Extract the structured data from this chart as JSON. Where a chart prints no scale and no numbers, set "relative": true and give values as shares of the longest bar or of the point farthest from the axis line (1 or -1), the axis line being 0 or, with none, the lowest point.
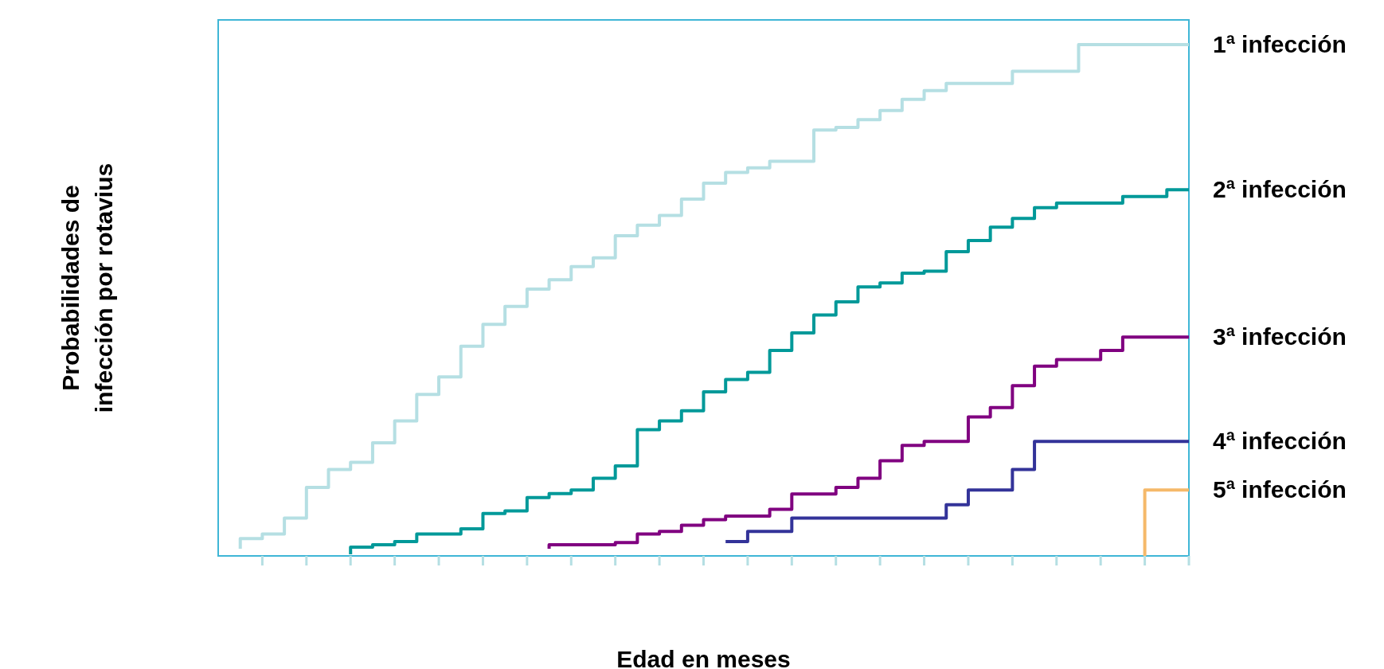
{
  "chart_data": {
    "type": "step",
    "relative": true,
    "xlabel": "Edad en meses",
    "ylabel": "Probabilidades de infección por rotavius",
    "legend": false,
    "categories": [
      null,
      null,
      null,
      null,
      null,
      null,
      null,
      null,
      null,
      null,
      null,
      null,
      null,
      null,
      null,
      null,
      null,
      null,
      null,
      null,
      null,
      null,
      null,
      null,
      null,
      null,
      null,
      null,
      null,
      null,
      null,
      null,
      null,
      null,
      null,
      null,
      null,
      null,
      null,
      null,
      null,
      null,
      null,
      null,
      null
    ],
    "series": [
      {
        "name": "1ª infección",
        "color": "#b5dfe3",
        "values": [
          null,
          0.014,
          0.034,
          0.043,
          0.074,
          0.134,
          0.169,
          0.183,
          0.221,
          0.264,
          0.316,
          0.35,
          0.41,
          0.453,
          0.488,
          0.522,
          0.54,
          0.566,
          0.583,
          0.626,
          0.647,
          0.666,
          0.698,
          0.729,
          0.75,
          0.759,
          0.772,
          0.772,
          0.833,
          0.838,
          0.853,
          0.871,
          0.893,
          0.91,
          0.924,
          0.924,
          0.924,
          0.948,
          0.948,
          0.948,
          1,
          1,
          1,
          1,
          1
        ]
      },
      {
        "name": "2ª infección",
        "color": "#009999",
        "values": [
          null,
          null,
          null,
          null,
          null,
          null,
          0.003,
          0.017,
          0.022,
          0.028,
          0.043,
          0.043,
          0.053,
          0.083,
          0.088,
          0.114,
          0.122,
          0.129,
          0.152,
          0.176,
          0.247,
          0.264,
          0.284,
          0.321,
          0.345,
          0.359,
          0.402,
          0.436,
          0.471,
          0.497,
          0.526,
          0.534,
          0.553,
          0.557,
          0.595,
          0.617,
          0.643,
          0.66,
          0.681,
          0.69,
          0.69,
          0.69,
          0.703,
          0.703,
          0.716
        ]
      },
      {
        "name": "3ª infección",
        "color": "#800080",
        "values": [
          null,
          null,
          null,
          null,
          null,
          null,
          null,
          null,
          null,
          null,
          null,
          null,
          null,
          null,
          null,
          0.014,
          0.022,
          0.022,
          0.022,
          0.026,
          0.043,
          0.048,
          0.06,
          0.071,
          0.078,
          0.078,
          0.091,
          0.121,
          0.121,
          0.134,
          0.152,
          0.186,
          0.216,
          0.224,
          0.224,
          0.272,
          0.29,
          0.333,
          0.371,
          0.384,
          0.384,
          0.402,
          0.428,
          0.428,
          0.428
        ]
      },
      {
        "name": "4ª infección",
        "color": "#333399",
        "values": [
          null,
          null,
          null,
          null,
          null,
          null,
          null,
          null,
          null,
          null,
          null,
          null,
          null,
          null,
          null,
          null,
          null,
          null,
          null,
          null,
          null,
          null,
          null,
          0.028,
          0.028,
          0.048,
          0.048,
          0.074,
          0.074,
          0.074,
          0.074,
          0.074,
          0.074,
          0.074,
          0.1,
          0.129,
          0.129,
          0.169,
          0.224,
          0.224,
          0.224,
          0.224,
          0.224,
          0.224,
          0.224
        ]
      },
      {
        "name": "5ª infección",
        "color": "#f5b96a",
        "values": [
          null,
          null,
          null,
          null,
          null,
          null,
          null,
          null,
          null,
          null,
          null,
          null,
          null,
          null,
          null,
          null,
          null,
          null,
          null,
          null,
          null,
          null,
          null,
          null,
          null,
          null,
          null,
          null,
          null,
          null,
          null,
          null,
          null,
          null,
          null,
          null,
          null,
          null,
          null,
          null,
          null,
          null,
          0,
          0.129,
          0.129
        ]
      }
    ]
  }
}
